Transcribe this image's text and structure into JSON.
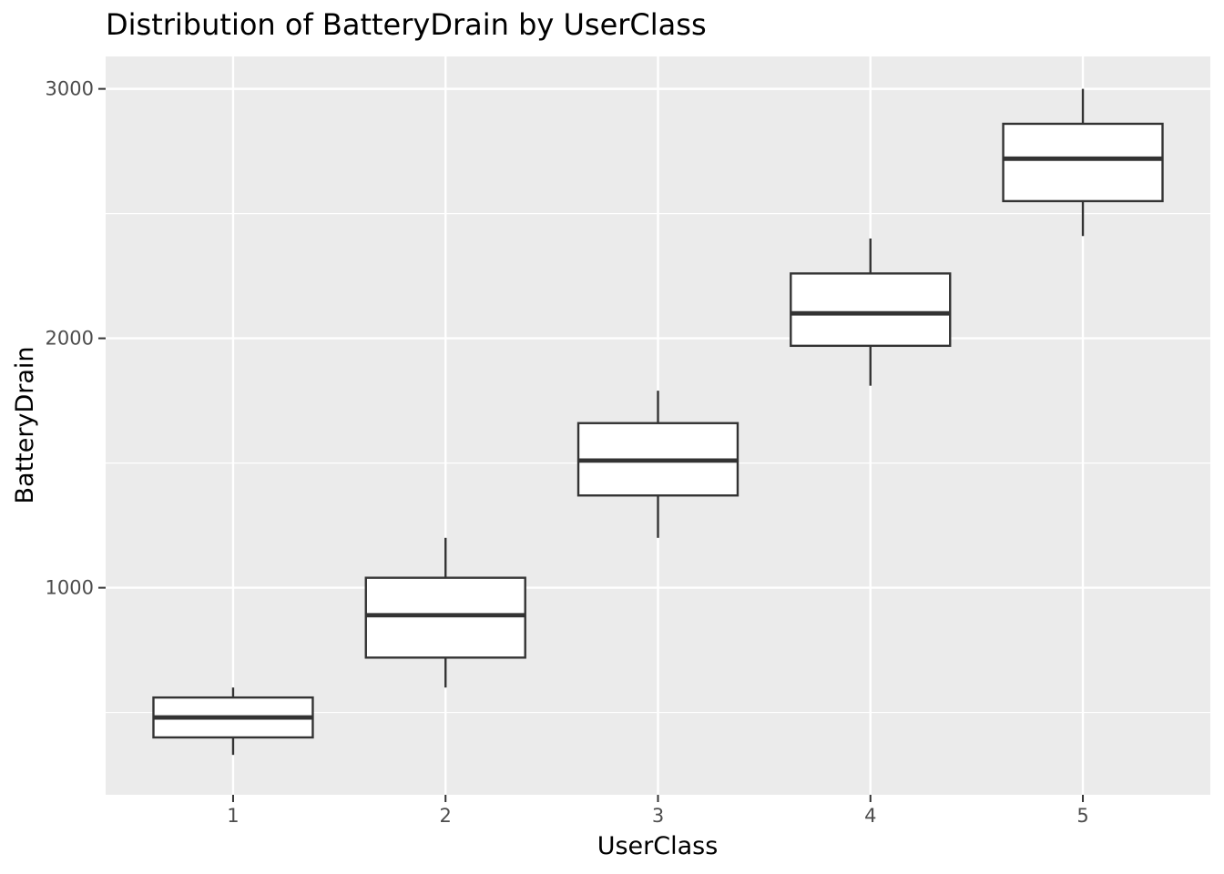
{
  "chart_data": {
    "type": "boxplot",
    "title": "Distribution of  BatteryDrain  by  UserClass",
    "xlabel": "UserClass",
    "ylabel": "BatteryDrain",
    "categories": [
      "1",
      "2",
      "3",
      "4",
      "5"
    ],
    "boxes": [
      {
        "category": "1",
        "whisker_low": 330,
        "q1": 400,
        "median": 480,
        "q3": 560,
        "whisker_high": 600
      },
      {
        "category": "2",
        "whisker_low": 600,
        "q1": 720,
        "median": 890,
        "q3": 1040,
        "whisker_high": 1200
      },
      {
        "category": "3",
        "whisker_low": 1200,
        "q1": 1370,
        "median": 1510,
        "q3": 1660,
        "whisker_high": 1790
      },
      {
        "category": "4",
        "whisker_low": 1810,
        "q1": 1970,
        "median": 2100,
        "q3": 2260,
        "whisker_high": 2400
      },
      {
        "category": "5",
        "whisker_low": 2410,
        "q1": 2550,
        "median": 2720,
        "q3": 2860,
        "whisker_high": 3000
      }
    ],
    "ylim": [
      170,
      3130
    ],
    "yticks": [
      1000,
      2000,
      3000
    ],
    "ytick_labels": [
      "1000",
      "2000",
      "3000"
    ],
    "grid": true,
    "colors": {
      "panel_background": "#ebebeb",
      "grid_major": "#ffffff",
      "grid_minor": "#ffffff",
      "box_fill": "#ffffff",
      "box_stroke": "#333333",
      "tick_mark": "#333333"
    }
  }
}
